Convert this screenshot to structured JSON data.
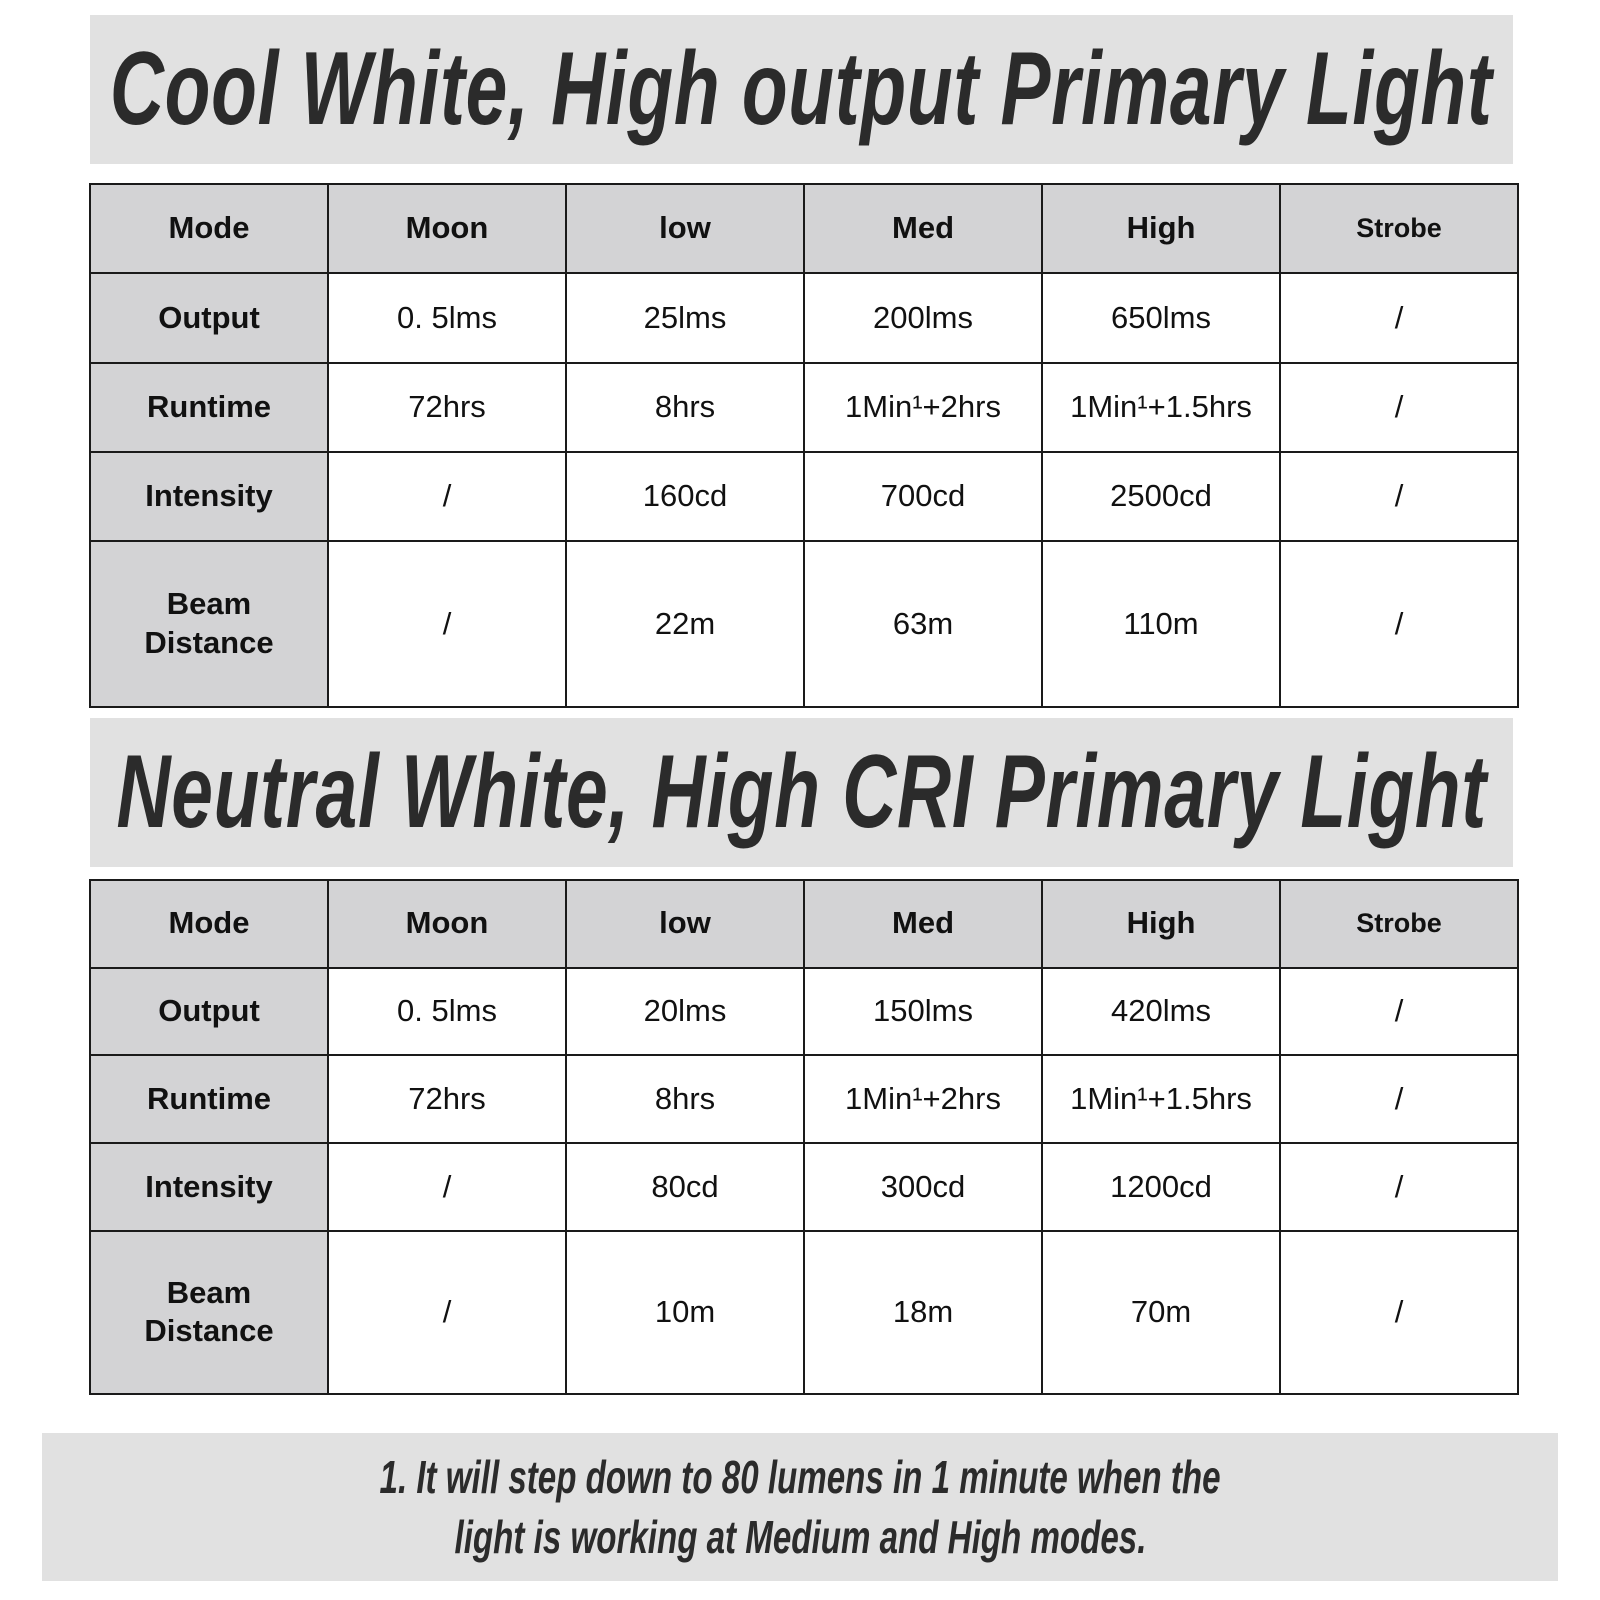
{
  "tables": [
    {
      "title": "Cool White, High output Primary Light",
      "header": [
        "Mode",
        "Moon",
        "low",
        "Med",
        "High",
        "Strobe"
      ],
      "rows": [
        [
          "Output",
          "0. 5lms",
          "25lms",
          "200lms",
          "650lms",
          "/"
        ],
        [
          "Runtime",
          "72hrs",
          "8hrs",
          "1Min¹+2hrs",
          "1Min¹+1.5hrs",
          "/"
        ],
        [
          "Intensity",
          "/",
          "160cd",
          "700cd",
          "2500cd",
          "/"
        ],
        [
          "Beam Distance",
          "/",
          "22m",
          "63m",
          "110m",
          "/"
        ]
      ]
    },
    {
      "title": "Neutral White, High CRI Primary Light",
      "header": [
        "Mode",
        "Moon",
        "low",
        "Med",
        "High",
        "Strobe"
      ],
      "rows": [
        [
          "Output",
          "0. 5lms",
          "20lms",
          "150lms",
          "420lms",
          "/"
        ],
        [
          "Runtime",
          "72hrs",
          "8hrs",
          "1Min¹+2hrs",
          "1Min¹+1.5hrs",
          "/"
        ],
        [
          "Intensity",
          "/",
          "80cd",
          "300cd",
          "1200cd",
          "/"
        ],
        [
          "Beam Distance",
          "/",
          "10m",
          "18m",
          "70m",
          "/"
        ]
      ]
    }
  ],
  "footnote": {
    "line1": "1. It will step down to 80 lumens in 1 minute when the",
    "line2": "light is working at Medium and High modes."
  },
  "colors": {
    "band": "#e1e1e1",
    "header_cell": "#d3d3d5",
    "text": "#2b2b2b"
  }
}
